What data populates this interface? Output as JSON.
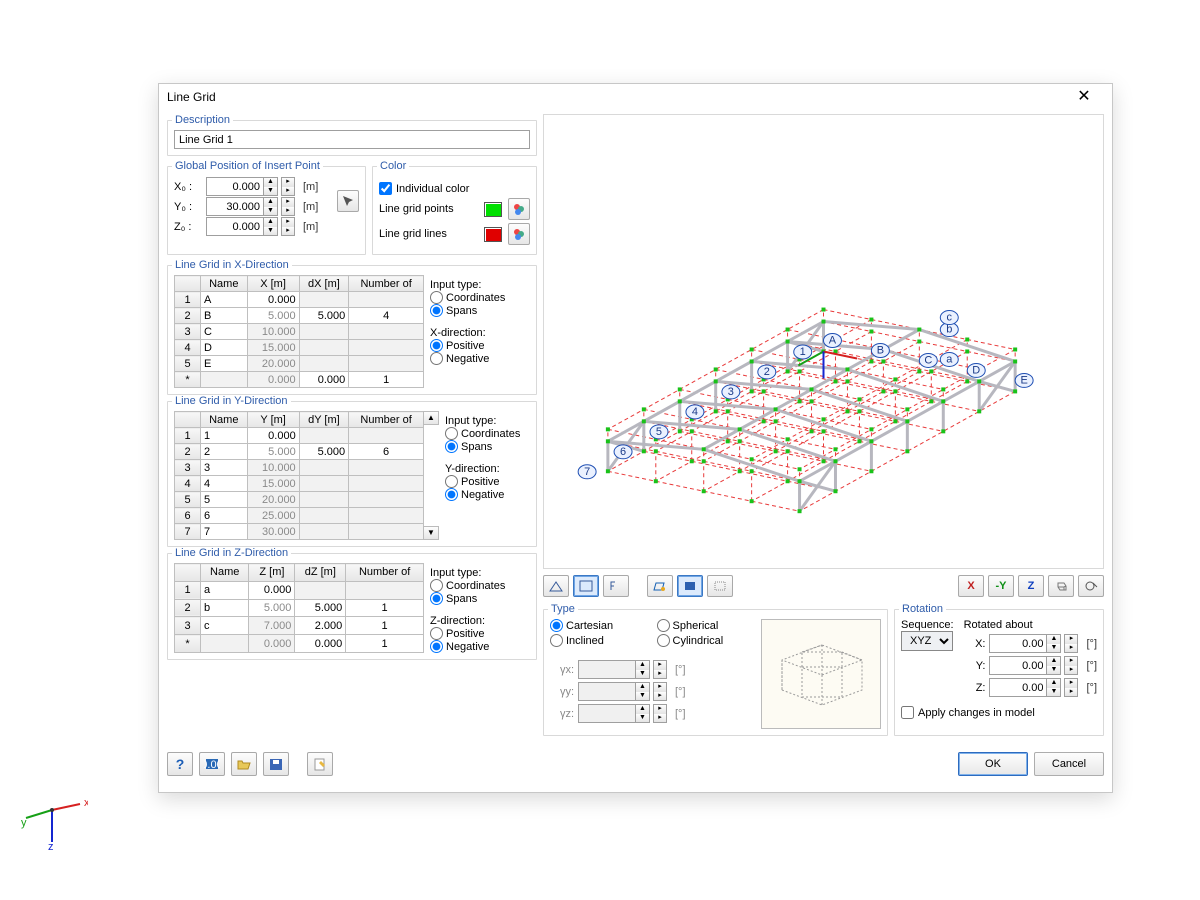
{
  "dialog": {
    "title": "Line Grid",
    "description_label": "Description",
    "description_value": "Line Grid 1"
  },
  "global_pos": {
    "title": "Global Position of Insert Point",
    "rows": [
      {
        "label": "X₀ :",
        "value": "0.000",
        "unit": "[m]"
      },
      {
        "label": "Y₀ :",
        "value": "30.000",
        "unit": "[m]"
      },
      {
        "label": "Z₀ :",
        "value": "0.000",
        "unit": "[m]"
      }
    ]
  },
  "color": {
    "title": "Color",
    "individual": "Individual color",
    "points_label": "Line grid points",
    "points_swatch": "#00e000",
    "lines_label": "Line grid lines",
    "lines_swatch": "#e00000"
  },
  "x_grid": {
    "title": "Line Grid in X-Direction",
    "columns": [
      "Name",
      "X [m]",
      "dX [m]",
      "Number of"
    ],
    "rows": [
      [
        "1",
        "A",
        "0.000",
        "",
        ""
      ],
      [
        "2",
        "B",
        "5.000",
        "5.000",
        "4"
      ],
      [
        "3",
        "C",
        "10.000",
        "",
        ""
      ],
      [
        "4",
        "D",
        "15.000",
        "",
        ""
      ],
      [
        "5",
        "E",
        "20.000",
        "",
        ""
      ],
      [
        "*",
        "",
        "0.000",
        "0.000",
        "1"
      ]
    ],
    "input_label": "Input type:",
    "input_opts": [
      "Coordinates",
      "Spans"
    ],
    "input_sel": "Spans",
    "dir_label": "X-direction:",
    "dir_opts": [
      "Positive",
      "Negative"
    ],
    "dir_sel": "Positive"
  },
  "y_grid": {
    "title": "Line Grid in Y-Direction",
    "columns": [
      "Name",
      "Y [m]",
      "dY [m]",
      "Number of"
    ],
    "rows": [
      [
        "1",
        "1",
        "0.000",
        "",
        ""
      ],
      [
        "2",
        "2",
        "5.000",
        "5.000",
        "6"
      ],
      [
        "3",
        "3",
        "10.000",
        "",
        ""
      ],
      [
        "4",
        "4",
        "15.000",
        "",
        ""
      ],
      [
        "5",
        "5",
        "20.000",
        "",
        ""
      ],
      [
        "6",
        "6",
        "25.000",
        "",
        ""
      ],
      [
        "7",
        "7",
        "30.000",
        "",
        ""
      ]
    ],
    "input_label": "Input type:",
    "input_opts": [
      "Coordinates",
      "Spans"
    ],
    "input_sel": "Spans",
    "dir_label": "Y-direction:",
    "dir_opts": [
      "Positive",
      "Negative"
    ],
    "dir_sel": "Negative"
  },
  "z_grid": {
    "title": "Line Grid in Z-Direction",
    "columns": [
      "Name",
      "Z [m]",
      "dZ [m]",
      "Number of"
    ],
    "rows": [
      [
        "1",
        "a",
        "0.000",
        "",
        ""
      ],
      [
        "2",
        "b",
        "5.000",
        "5.000",
        "1"
      ],
      [
        "3",
        "c",
        "7.000",
        "2.000",
        "1"
      ],
      [
        "*",
        "",
        "0.000",
        "0.000",
        "1"
      ]
    ],
    "input_label": "Input type:",
    "input_opts": [
      "Coordinates",
      "Spans"
    ],
    "input_sel": "Spans",
    "dir_label": "Z-direction:",
    "dir_opts": [
      "Positive",
      "Negative"
    ],
    "dir_sel": "Negative"
  },
  "type": {
    "title": "Type",
    "opts": [
      "Cartesian",
      "Spherical",
      "Inclined",
      "Cylindrical"
    ],
    "sel": "Cartesian",
    "gammas": [
      {
        "label": "γx:",
        "value": "",
        "unit": "[°]"
      },
      {
        "label": "γy:",
        "value": "",
        "unit": "[°]"
      },
      {
        "label": "γz:",
        "value": "",
        "unit": "[°]"
      }
    ]
  },
  "rotation": {
    "title": "Rotation",
    "seq_label": "Sequence:",
    "seq_value": "XYZ",
    "about_label": "Rotated about",
    "rows": [
      {
        "label": "X:",
        "value": "0.00",
        "unit": "[°]"
      },
      {
        "label": "Y:",
        "value": "0.00",
        "unit": "[°]"
      },
      {
        "label": "Z:",
        "value": "0.00",
        "unit": "[°]"
      }
    ],
    "apply_label": "Apply changes in model"
  },
  "buttons": {
    "ok": "OK",
    "cancel": "Cancel"
  },
  "preview_labels": {
    "numbered": [
      "1",
      "2",
      "3",
      "4",
      "5",
      "6",
      "7"
    ],
    "letters": [
      "A",
      "B",
      "C",
      "D",
      "E"
    ],
    "lowers": [
      "a",
      "b",
      "c"
    ]
  },
  "gizmo": {
    "x": "x",
    "y": "y",
    "z": "z"
  },
  "colors": {
    "grid_line": "#e83a3a",
    "grid_point": "#19c219",
    "structure": "#b7b7bf",
    "label_border": "#1f4fb3",
    "label_bg": "#eaf1ff"
  }
}
